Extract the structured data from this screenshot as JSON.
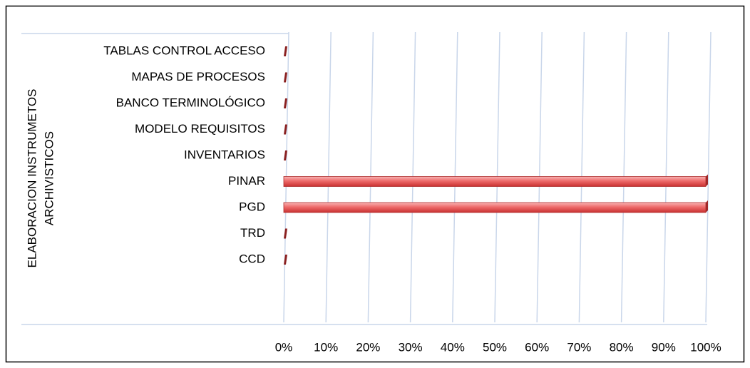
{
  "chart_data": {
    "type": "bar",
    "orientation": "horizontal",
    "ylabel": [
      "ELABORACION INSTRUMETOS",
      "ARCHIVISTICOS"
    ],
    "categories": [
      "CCD",
      "TRD",
      "PGD",
      "PINAR",
      "INVENTARIOS",
      "MODELO REQUISITOS",
      "BANCO TERMINOLÓGICO",
      "MAPAS DE PROCESOS",
      "TABLAS CONTROL ACCESO"
    ],
    "values": [
      0,
      0,
      100,
      100,
      0,
      0,
      0,
      0,
      0
    ],
    "color": "#e04848",
    "xlim": [
      0,
      100
    ],
    "xticks": [
      {
        "value": 0,
        "label": "0%"
      },
      {
        "value": 10,
        "label": "10%"
      },
      {
        "value": 20,
        "label": "20%"
      },
      {
        "value": 30,
        "label": "30%"
      },
      {
        "value": 40,
        "label": "40%"
      },
      {
        "value": 50,
        "label": "50%"
      },
      {
        "value": 60,
        "label": "60%"
      },
      {
        "value": 70,
        "label": "70%"
      },
      {
        "value": 80,
        "label": "80%"
      },
      {
        "value": 90,
        "label": "90%"
      },
      {
        "value": 100,
        "label": "100%"
      }
    ],
    "grid": true
  }
}
